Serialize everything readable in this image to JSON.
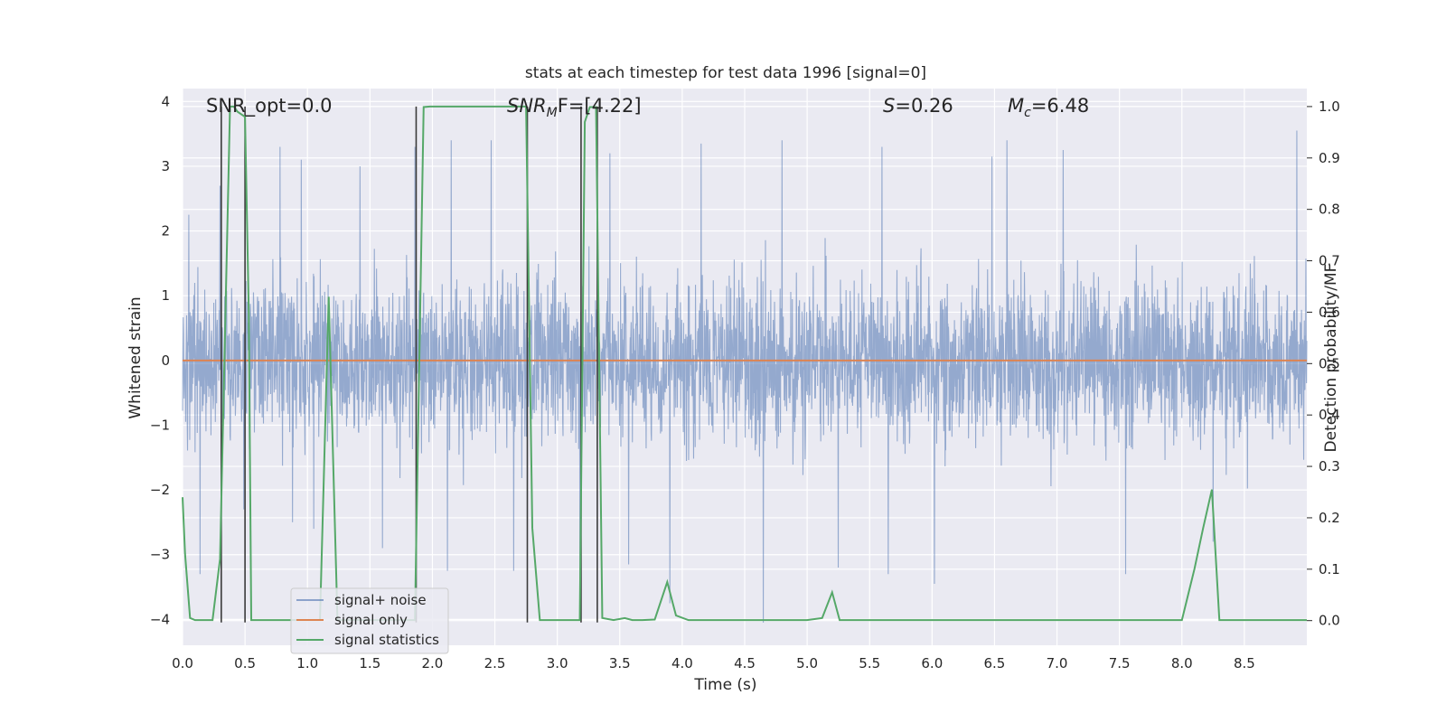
{
  "chart_data": {
    "type": "line",
    "title": "stats at each timestep for test data 1996 [signal=0]",
    "xlabel": "Time (s)",
    "ylabel": "Whitened strain",
    "ylabel_right": "Detection probability/MF",
    "xlim": [
      0,
      9.0
    ],
    "ylim": [
      -4.4,
      4.2
    ],
    "ylim_right": [
      -0.048,
      1.035
    ],
    "x_ticks": [
      "0.0",
      "0.5",
      "1.0",
      "1.5",
      "2.0",
      "2.5",
      "3.0",
      "3.5",
      "4.0",
      "4.5",
      "5.0",
      "5.5",
      "6.0",
      "6.5",
      "7.0",
      "7.5",
      "8.0",
      "8.5"
    ],
    "y_ticks": [
      "−4",
      "−3",
      "−2",
      "−1",
      "0",
      "1",
      "2",
      "3",
      "4"
    ],
    "y_ticks_right": [
      "0.0",
      "0.1",
      "0.2",
      "0.3",
      "0.4",
      "0.5",
      "0.6",
      "0.7",
      "0.8",
      "0.9",
      "1.0"
    ],
    "annotations": {
      "snr_opt": "SNR_opt=0.0",
      "snr_mf_main": "SNR",
      "snr_mf_sub": "M",
      "snr_mf_tail": "F=[4.22]",
      "s_label": "S",
      "s_value": "=0.26",
      "mc_main": "M",
      "mc_sub": "c",
      "mc_value": "=6.48"
    },
    "legend": [
      {
        "label": "signal+ noise",
        "color": "#4c72b0"
      },
      {
        "label": "signal only",
        "color": "#dd8452"
      },
      {
        "label": "signal statistics",
        "color": "#55a868"
      }
    ],
    "grid": true,
    "legend_position": "lower-left",
    "series": [
      {
        "name": "signal+ noise",
        "color": "#4c72b0",
        "description": "whitened noisy strain, approximately Gaussian around 0",
        "envelope_peaks": [
          [
            0.05,
            2.25
          ],
          [
            0.14,
            -3.3
          ],
          [
            0.3,
            2.7
          ],
          [
            0.49,
            -2.3
          ],
          [
            0.78,
            3.3
          ],
          [
            0.88,
            -2.5
          ],
          [
            0.95,
            3.1
          ],
          [
            1.05,
            -2.6
          ],
          [
            1.42,
            3.0
          ],
          [
            1.6,
            -2.9
          ],
          [
            1.86,
            3.3
          ],
          [
            2.12,
            -3.25
          ],
          [
            2.15,
            3.4
          ],
          [
            2.47,
            3.4
          ],
          [
            2.65,
            -3.25
          ],
          [
            3.18,
            -3.45
          ],
          [
            3.42,
            3.2
          ],
          [
            3.57,
            -3.15
          ],
          [
            3.9,
            -3.75
          ],
          [
            4.15,
            3.35
          ],
          [
            4.65,
            -4.05
          ],
          [
            4.8,
            3.4
          ],
          [
            5.25,
            -3.2
          ],
          [
            5.6,
            3.3
          ],
          [
            5.65,
            -3.3
          ],
          [
            6.02,
            -3.45
          ],
          [
            6.48,
            3.15
          ],
          [
            6.6,
            3.4
          ],
          [
            7.05,
            3.25
          ],
          [
            7.55,
            -3.3
          ],
          [
            8.25,
            -2.8
          ],
          [
            8.92,
            3.55
          ]
        ]
      },
      {
        "name": "signal only",
        "color": "#dd8452",
        "x": [
          0.0,
          9.0
        ],
        "y": [
          0.0,
          0.0
        ]
      },
      {
        "name": "signal statistics",
        "color": "#55a868",
        "axis": "right",
        "x": [
          0.0,
          0.02,
          0.06,
          0.1,
          0.17,
          0.24,
          0.3,
          0.38,
          0.41,
          0.44,
          0.5,
          0.53,
          0.55,
          0.66,
          0.9,
          1.1,
          1.17,
          1.24,
          1.3,
          1.4,
          1.7,
          1.86,
          1.93,
          1.98,
          2.05,
          2.25,
          2.5,
          2.7,
          2.75,
          2.8,
          2.86,
          2.9,
          3.05,
          3.18,
          3.22,
          3.26,
          3.31,
          3.36,
          3.45,
          3.54,
          3.6,
          3.68,
          3.78,
          3.88,
          3.95,
          4.05,
          4.5,
          5.0,
          5.12,
          5.2,
          5.26,
          5.5,
          6.0,
          7.0,
          8.0,
          8.1,
          8.17,
          8.24,
          8.3,
          8.5,
          9.0
        ],
        "y": [
          0.24,
          0.13,
          0.005,
          0.001,
          0.001,
          0.001,
          0.12,
          1.0,
          1.0,
          0.99,
          0.98,
          0.6,
          0.001,
          0.001,
          0.001,
          0.001,
          0.63,
          0.001,
          0.001,
          0.001,
          0.001,
          0.001,
          0.999,
          1.0,
          1.0,
          1.0,
          1.0,
          1.0,
          1.0,
          0.18,
          0.001,
          0.001,
          0.001,
          0.001,
          0.97,
          0.999,
          0.999,
          0.005,
          0.001,
          0.005,
          0.001,
          0.001,
          0.002,
          0.075,
          0.01,
          0.001,
          0.001,
          0.001,
          0.005,
          0.055,
          0.001,
          0.001,
          0.001,
          0.001,
          0.001,
          0.1,
          0.18,
          0.255,
          0.001,
          0.001,
          0.001
        ]
      }
    ],
    "vertical_markers_x": [
      0.31,
      0.5,
      1.87,
      2.76,
      3.19,
      3.32
    ]
  }
}
